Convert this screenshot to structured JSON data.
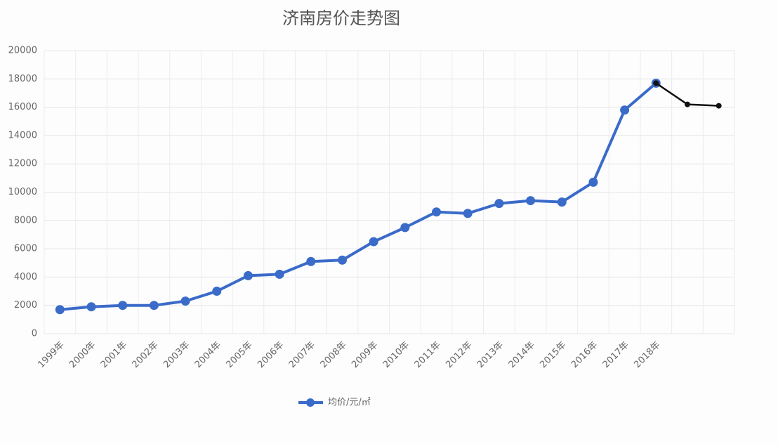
{
  "chart_data": {
    "type": "line",
    "title": "济南房价走势图",
    "categories": [
      "1999年",
      "2000年",
      "2001年",
      "2002年",
      "2003年",
      "2004年",
      "2005年",
      "2006年",
      "2007年",
      "2008年",
      "2009年",
      "2010年",
      "2011年",
      "2012年",
      "2013年",
      "2014年",
      "2015年",
      "2016年",
      "2017年",
      "2018年",
      null,
      null
    ],
    "series": [
      {
        "name": "均价/元/㎡",
        "color": "#3a6bc9",
        "values": [
          1700,
          1900,
          2000,
          2000,
          2300,
          3000,
          4100,
          4200,
          5100,
          5200,
          6500,
          7500,
          8600,
          8500,
          9200,
          9400,
          9300,
          10700,
          15800,
          17700,
          null,
          null
        ]
      },
      {
        "color": "#111111",
        "values": [
          null,
          null,
          null,
          null,
          null,
          null,
          null,
          null,
          null,
          null,
          null,
          null,
          null,
          null,
          null,
          null,
          null,
          null,
          null,
          17700,
          16200,
          16100
        ]
      }
    ],
    "ylim": [
      0,
      20000
    ],
    "yticks": [
      0,
      2000,
      4000,
      6000,
      8000,
      10000,
      12000,
      14000,
      16000,
      18000,
      20000
    ],
    "grid": true
  }
}
